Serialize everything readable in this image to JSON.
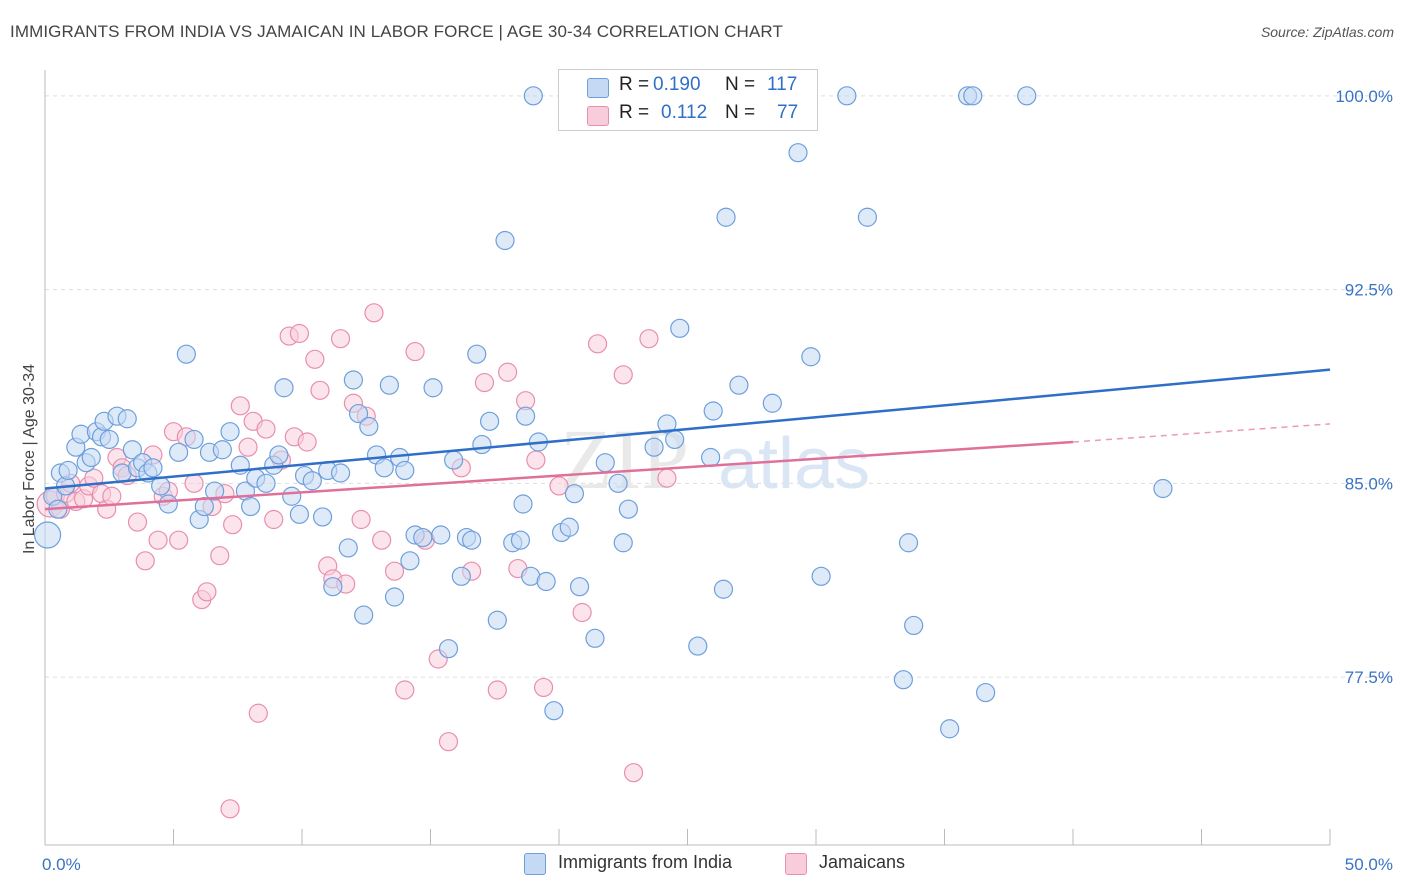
{
  "title": "IMMIGRANTS FROM INDIA VS JAMAICAN IN LABOR FORCE | AGE 30-34 CORRELATION CHART",
  "source": "Source: ZipAtlas.com",
  "watermark": {
    "zip": "ZIP",
    "atlas": "atlas"
  },
  "legend": {
    "r_label": "R =",
    "n_label": "N =",
    "rows": [
      {
        "r": "0.190",
        "n": "117"
      },
      {
        "r": "0.112",
        "n": "77"
      }
    ]
  },
  "colors": {
    "india_fill": "#c5d9f4",
    "india_stroke": "#6d9fdc",
    "india_line": "#2f6fc8",
    "jamaica_fill": "#f8cddb",
    "jamaica_stroke": "#e88fae",
    "jamaica_line": "#e0709a",
    "tick_text": "#3a73c4",
    "grid": "#dddddd"
  },
  "chart_data": {
    "type": "scatter",
    "title": "IMMIGRANTS FROM INDIA VS JAMAICAN IN LABOR FORCE | AGE 30-34 CORRELATION CHART",
    "xlabel": "",
    "ylabel": "In Labor Force | Age 30-34",
    "xlim": [
      0,
      50
    ],
    "ylim": [
      71,
      101
    ],
    "x_tick_labels": [
      "0.0%",
      "50.0%"
    ],
    "y_ticks": [
      77.5,
      85.0,
      92.5,
      100.0
    ],
    "y_tick_labels": [
      "77.5%",
      "85.0%",
      "92.5%",
      "100.0%"
    ],
    "grid": true,
    "legend_position": "top-center",
    "series": [
      {
        "name": "Immigrants from India",
        "r": 0.19,
        "n": 117,
        "trend": {
          "x0": 0,
          "y0": 84.8,
          "x1": 50,
          "y1": 89.4
        },
        "points": [
          [
            0.1,
            83.0
          ],
          [
            0.3,
            84.5
          ],
          [
            0.5,
            84.0
          ],
          [
            0.6,
            85.4
          ],
          [
            0.8,
            84.9
          ],
          [
            0.9,
            85.5
          ],
          [
            1.2,
            86.4
          ],
          [
            1.4,
            86.9
          ],
          [
            1.6,
            85.8
          ],
          [
            1.8,
            86.0
          ],
          [
            2.0,
            87.0
          ],
          [
            2.2,
            86.8
          ],
          [
            2.3,
            87.4
          ],
          [
            2.5,
            86.7
          ],
          [
            2.8,
            87.6
          ],
          [
            3.0,
            85.4
          ],
          [
            3.2,
            87.5
          ],
          [
            3.4,
            86.3
          ],
          [
            3.6,
            85.6
          ],
          [
            3.8,
            85.8
          ],
          [
            4.0,
            85.4
          ],
          [
            4.2,
            85.6
          ],
          [
            4.5,
            84.9
          ],
          [
            4.8,
            84.2
          ],
          [
            5.2,
            86.2
          ],
          [
            5.5,
            90.0
          ],
          [
            5.8,
            86.7
          ],
          [
            6.0,
            83.6
          ],
          [
            6.2,
            84.1
          ],
          [
            6.4,
            86.2
          ],
          [
            6.6,
            84.7
          ],
          [
            6.9,
            86.3
          ],
          [
            7.2,
            87.0
          ],
          [
            7.6,
            85.7
          ],
          [
            7.8,
            84.7
          ],
          [
            8.0,
            84.1
          ],
          [
            8.2,
            85.2
          ],
          [
            8.6,
            85.0
          ],
          [
            8.9,
            85.7
          ],
          [
            9.1,
            86.1
          ],
          [
            9.3,
            88.7
          ],
          [
            9.6,
            84.5
          ],
          [
            9.9,
            83.8
          ],
          [
            10.1,
            85.3
          ],
          [
            10.4,
            85.1
          ],
          [
            10.8,
            83.7
          ],
          [
            11.0,
            85.5
          ],
          [
            11.2,
            81.0
          ],
          [
            11.5,
            85.4
          ],
          [
            11.8,
            82.5
          ],
          [
            12.0,
            89.0
          ],
          [
            12.2,
            87.7
          ],
          [
            12.4,
            79.9
          ],
          [
            12.6,
            87.2
          ],
          [
            12.9,
            86.1
          ],
          [
            13.2,
            85.6
          ],
          [
            13.4,
            88.8
          ],
          [
            13.6,
            80.6
          ],
          [
            13.8,
            86.0
          ],
          [
            14.0,
            85.5
          ],
          [
            14.2,
            82.0
          ],
          [
            14.4,
            83.0
          ],
          [
            14.7,
            82.9
          ],
          [
            15.1,
            88.7
          ],
          [
            15.4,
            83.0
          ],
          [
            15.7,
            78.6
          ],
          [
            15.9,
            85.9
          ],
          [
            16.2,
            81.4
          ],
          [
            16.4,
            82.9
          ],
          [
            16.6,
            82.8
          ],
          [
            16.8,
            90.0
          ],
          [
            17.3,
            87.4
          ],
          [
            17.6,
            79.7
          ],
          [
            17.9,
            94.4
          ],
          [
            18.2,
            82.7
          ],
          [
            18.5,
            82.8
          ],
          [
            18.7,
            87.6
          ],
          [
            18.9,
            81.4
          ],
          [
            19.2,
            86.6
          ],
          [
            19.5,
            81.2
          ],
          [
            19.8,
            76.2
          ],
          [
            20.1,
            83.1
          ],
          [
            20.4,
            83.3
          ],
          [
            20.8,
            81.0
          ],
          [
            21.4,
            79.0
          ],
          [
            19.0,
            100.0
          ],
          [
            21.8,
            85.8
          ],
          [
            22.3,
            85.0
          ],
          [
            22.5,
            82.7
          ],
          [
            22.7,
            84.0
          ],
          [
            23.7,
            86.4
          ],
          [
            24.5,
            86.7
          ],
          [
            24.2,
            87.3
          ],
          [
            24.7,
            91.0
          ],
          [
            25.4,
            78.7
          ],
          [
            25.9,
            86.0
          ],
          [
            26.0,
            87.8
          ],
          [
            26.4,
            80.9
          ],
          [
            26.5,
            95.3
          ],
          [
            27.0,
            88.8
          ],
          [
            27.8,
            100.0
          ],
          [
            28.3,
            88.1
          ],
          [
            29.3,
            97.8
          ],
          [
            29.8,
            89.9
          ],
          [
            30.2,
            81.4
          ],
          [
            31.2,
            100.0
          ],
          [
            32.0,
            95.3
          ],
          [
            33.4,
            77.4
          ],
          [
            33.6,
            82.7
          ],
          [
            33.8,
            79.5
          ],
          [
            35.2,
            75.5
          ],
          [
            35.9,
            100.0
          ],
          [
            36.1,
            100.0
          ],
          [
            36.6,
            76.9
          ],
          [
            38.2,
            100.0
          ],
          [
            43.5,
            84.8
          ],
          [
            18.6,
            84.2
          ],
          [
            17.0,
            86.5
          ],
          [
            20.6,
            84.6
          ]
        ]
      },
      {
        "name": "Jamaicans",
        "r": 0.112,
        "n": 77,
        "trend": {
          "x0": 0,
          "y0": 84.0,
          "x1": 40,
          "y1": 86.6
        },
        "trend_dashed": {
          "x0": 40,
          "y0": 86.6,
          "x1": 50,
          "y1": 87.3
        },
        "points": [
          [
            0.2,
            84.2
          ],
          [
            0.4,
            84.5
          ],
          [
            0.6,
            84.0
          ],
          [
            0.8,
            84.6
          ],
          [
            1.0,
            85.0
          ],
          [
            1.2,
            84.3
          ],
          [
            1.5,
            84.4
          ],
          [
            1.7,
            84.9
          ],
          [
            1.9,
            85.2
          ],
          [
            2.2,
            84.6
          ],
          [
            2.4,
            84.0
          ],
          [
            2.6,
            84.5
          ],
          [
            2.8,
            86.0
          ],
          [
            3.0,
            85.6
          ],
          [
            3.2,
            85.3
          ],
          [
            3.6,
            83.5
          ],
          [
            3.9,
            82.0
          ],
          [
            4.2,
            86.1
          ],
          [
            4.4,
            82.8
          ],
          [
            4.6,
            84.5
          ],
          [
            4.8,
            84.7
          ],
          [
            5.0,
            87.0
          ],
          [
            5.2,
            82.8
          ],
          [
            5.5,
            86.8
          ],
          [
            5.8,
            85.0
          ],
          [
            6.1,
            80.5
          ],
          [
            6.3,
            80.8
          ],
          [
            6.5,
            84.1
          ],
          [
            6.8,
            82.2
          ],
          [
            7.0,
            84.6
          ],
          [
            7.3,
            83.4
          ],
          [
            7.6,
            88.0
          ],
          [
            7.9,
            86.4
          ],
          [
            8.1,
            87.4
          ],
          [
            8.3,
            76.1
          ],
          [
            8.6,
            87.1
          ],
          [
            8.9,
            83.6
          ],
          [
            9.2,
            85.9
          ],
          [
            9.5,
            90.7
          ],
          [
            9.7,
            86.8
          ],
          [
            9.9,
            90.8
          ],
          [
            10.2,
            86.6
          ],
          [
            10.5,
            89.8
          ],
          [
            10.7,
            88.6
          ],
          [
            11.0,
            81.8
          ],
          [
            11.2,
            81.3
          ],
          [
            11.5,
            90.6
          ],
          [
            11.7,
            81.1
          ],
          [
            12.0,
            88.1
          ],
          [
            12.3,
            83.6
          ],
          [
            12.5,
            87.6
          ],
          [
            12.8,
            91.6
          ],
          [
            13.1,
            82.8
          ],
          [
            13.6,
            81.6
          ],
          [
            14.0,
            77.0
          ],
          [
            14.4,
            90.1
          ],
          [
            14.8,
            82.8
          ],
          [
            15.3,
            78.2
          ],
          [
            15.7,
            75.0
          ],
          [
            16.2,
            85.6
          ],
          [
            16.6,
            81.6
          ],
          [
            17.1,
            88.9
          ],
          [
            17.6,
            77.0
          ],
          [
            18.0,
            89.3
          ],
          [
            18.4,
            81.7
          ],
          [
            18.7,
            88.2
          ],
          [
            19.1,
            85.9
          ],
          [
            19.4,
            77.1
          ],
          [
            20.0,
            84.9
          ],
          [
            20.9,
            80.0
          ],
          [
            21.5,
            90.4
          ],
          [
            22.5,
            89.2
          ],
          [
            22.9,
            73.8
          ],
          [
            23.5,
            90.6
          ],
          [
            24.2,
            85.2
          ],
          [
            27.4,
            100.0
          ],
          [
            7.2,
            72.4
          ]
        ]
      }
    ]
  },
  "bottom_legend": [
    {
      "label": "Immigrants from India"
    },
    {
      "label": "Jamaicans"
    }
  ]
}
